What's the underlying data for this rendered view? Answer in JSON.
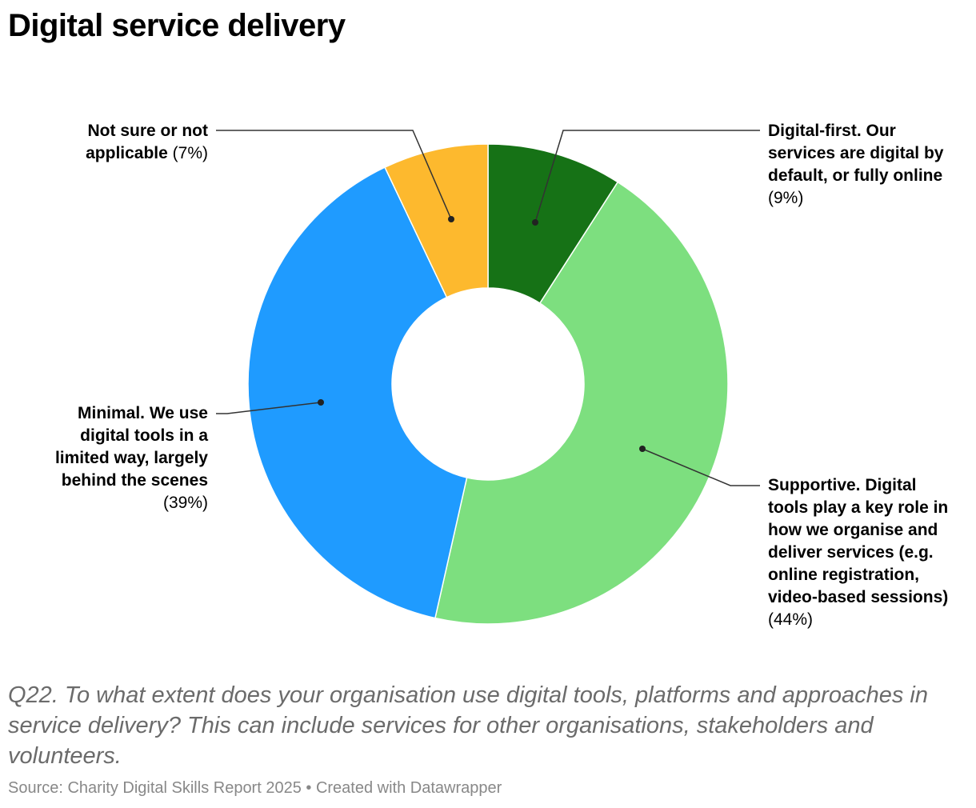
{
  "header": {
    "title": "Digital service delivery"
  },
  "chart_data": {
    "type": "pie",
    "donut": true,
    "title": "Digital service delivery",
    "slices": [
      {
        "label": "Digital-first. Our services are digital by default, or fully online",
        "value": 9,
        "value_label": "(9%)",
        "color": "#167216"
      },
      {
        "label": "Supportive. Digital tools play a key role in how we organise and deliver services (e.g. online registration, video-based sessions)",
        "value": 44,
        "value_label": "(44%)",
        "color": "#7ddf7f"
      },
      {
        "label": "Minimal. We use digital tools in a limited way, largely behind the scenes",
        "value": 39,
        "value_label": "(39%)",
        "color": "#1f9bff"
      },
      {
        "label": "Not sure or not applicable",
        "value": 7,
        "value_label": "(7%)",
        "color": "#fdb92e"
      }
    ],
    "labels": {
      "digital_first": {
        "lines": [
          "Digital-first. Our",
          "services are digital by",
          "default, or fully online"
        ],
        "pct": "(9%)"
      },
      "supportive": {
        "lines": [
          "Supportive. Digital",
          "tools play a key role in",
          "how we organise and",
          "deliver services (e.g.",
          "online registration,",
          "video-based sessions)"
        ],
        "pct": "(44%)"
      },
      "minimal": {
        "lines": [
          "Minimal. We use",
          "digital tools in a",
          "limited way, largely",
          "behind the scenes"
        ],
        "pct": "(39%)"
      },
      "not_sure": {
        "lines": [
          "Not sure or not",
          "applicable"
        ],
        "pct": "(7%)"
      }
    }
  },
  "footer": {
    "note": "Q22. To what extent does your organisation use digital tools, platforms and approaches in service delivery? This can include services for other organisations, stakeholders and volunteers.",
    "source": "Source: Charity Digital Skills Report 2025 • Created with Datawrapper"
  }
}
